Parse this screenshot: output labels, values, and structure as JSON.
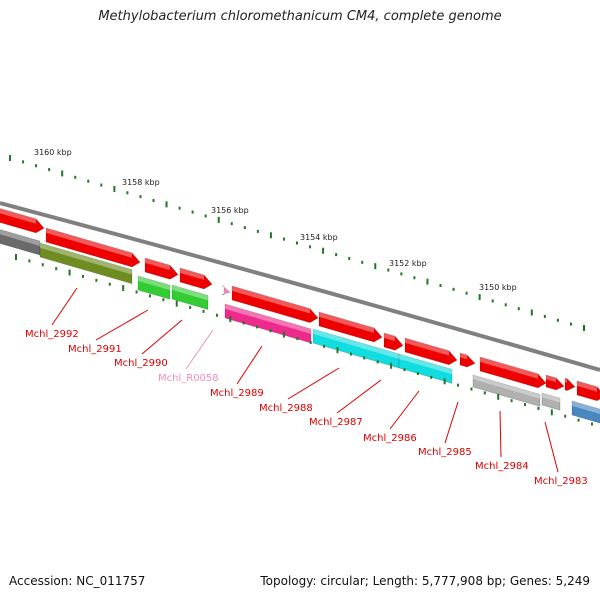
{
  "title": "Methylobacterium chloromethanicum CM4, complete genome",
  "footer": {
    "accession": "Accession: NC_011757",
    "summary": "Topology: circular; Length: 5,777,908 bp; Genes: 5,249"
  },
  "ruler_labels": [
    "3160 kbp",
    "3158 kbp",
    "3156 kbp",
    "3154 kbp",
    "3152 kbp",
    "3150 kbp"
  ],
  "gene_labels": [
    {
      "name": "Mchl_2992",
      "color": "#dd0000"
    },
    {
      "name": "Mchl_2991",
      "color": "#dd0000"
    },
    {
      "name": "Mchl_2990",
      "color": "#dd0000"
    },
    {
      "name": "Mchl_R0058",
      "color": "#f08cc0"
    },
    {
      "name": "Mchl_2989",
      "color": "#dd0000"
    },
    {
      "name": "Mchl_2988",
      "color": "#dd0000"
    },
    {
      "name": "Mchl_2987",
      "color": "#dd0000"
    },
    {
      "name": "Mchl_2986",
      "color": "#dd0000"
    },
    {
      "name": "Mchl_2985",
      "color": "#dd0000"
    },
    {
      "name": "Mchl_2984",
      "color": "#dd0000"
    },
    {
      "name": "Mchl_2983",
      "color": "#dd0000"
    }
  ],
  "colors": {
    "forward_strand": "#ee0000",
    "backbone": "#808080",
    "tick": "#227722",
    "gene_grey": "#b0b0b0",
    "gene_olive": "#6e8c20",
    "gene_green": "#33cc33",
    "gene_magenta": "#ee2a8c",
    "gene_cyan": "#11dde0",
    "gene_blue": "#4a86c0"
  }
}
